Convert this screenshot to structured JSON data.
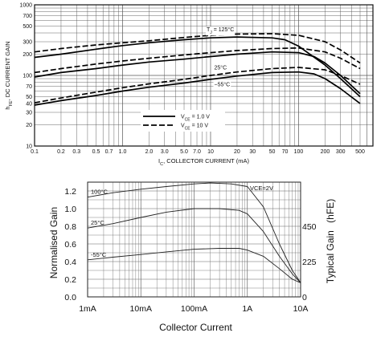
{
  "chart_data": [
    {
      "type": "line",
      "xlabel": "I_C, COLLECTOR CURRENT (mA)",
      "xlabel_parts": {
        "prefix": "I",
        "sub": "C",
        "suffix": ", COLLECTOR CURRENT (mA)"
      },
      "ylabel": "h_FE, DC CURRENT GAIN",
      "ylabel_parts": {
        "prefix": "h",
        "sub": "FE",
        "suffix": ", DC CURRENT GAIN"
      },
      "x_scale": "log",
      "y_scale": "log",
      "xlim": [
        0.1,
        700
      ],
      "ylim": [
        10,
        1000
      ],
      "grid": true,
      "x_ticks": [
        0.1,
        0.2,
        0.3,
        0.5,
        0.7,
        1.0,
        2.0,
        3.0,
        5.0,
        7.0,
        10,
        20,
        30,
        50,
        70,
        100,
        200,
        300,
        500
      ],
      "x_tick_labels": [
        "0.1",
        "0.2",
        "0.3",
        "0.5",
        "0.7",
        "1.0",
        "2.0",
        "3.0",
        "5.0",
        "7.0",
        "10",
        "20",
        "30",
        "50",
        "70",
        "100",
        "200",
        "300",
        "500"
      ],
      "y_ticks": [
        10,
        20,
        30,
        40,
        50,
        70,
        100,
        200,
        300,
        500,
        700,
        1000
      ],
      "y_tick_labels": [
        "10",
        "20",
        "30",
        "40",
        "50",
        "70",
        "100",
        "200",
        "300",
        "500",
        "700",
        "1000"
      ],
      "legend": {
        "placement": "bottom-center",
        "entries": [
          {
            "label_prefix": "V",
            "label_sub": "CE",
            "label_suffix": " = 1.0 V",
            "style": "solid"
          },
          {
            "label_prefix": "V",
            "label_sub": "CE",
            "label_suffix": " = 10 V",
            "style": "dashed"
          }
        ]
      },
      "annotations": [
        {
          "prefix": "T",
          "sub": "J",
          "suffix": " = 125°C",
          "x": 9,
          "y": 420
        },
        {
          "prefix": "",
          "sub": "",
          "suffix": "25°C",
          "x": 11,
          "y": 122
        },
        {
          "prefix": "",
          "sub": "",
          "suffix": "−55°C",
          "x": 11,
          "y": 70
        }
      ],
      "series": [
        {
          "condition": "T_J = 125°C, V_CE = 1.0 V",
          "style": "solid",
          "x": [
            0.1,
            0.2,
            0.5,
            1,
            2,
            5,
            10,
            20,
            50,
            70,
            100,
            200,
            300,
            500
          ],
          "y": [
            180,
            200,
            235,
            265,
            290,
            320,
            340,
            350,
            340,
            320,
            260,
            140,
            90,
            50
          ]
        },
        {
          "condition": "T_J = 125°C, V_CE = 10 V",
          "style": "dashed",
          "x": [
            0.1,
            0.2,
            0.5,
            1,
            2,
            5,
            10,
            20,
            50,
            100,
            200,
            300,
            500
          ],
          "y": [
            215,
            240,
            270,
            290,
            310,
            345,
            370,
            385,
            390,
            370,
            300,
            230,
            150
          ]
        },
        {
          "condition": "T_J = 25°C, V_CE = 1.0 V",
          "style": "solid",
          "x": [
            0.1,
            0.2,
            0.5,
            1,
            2,
            5,
            10,
            20,
            50,
            100,
            150,
            200,
            300,
            500
          ],
          "y": [
            95,
            110,
            125,
            140,
            155,
            170,
            185,
            200,
            215,
            210,
            185,
            150,
            100,
            55
          ]
        },
        {
          "condition": "T_J = 25°C, V_CE = 10 V",
          "style": "dashed",
          "x": [
            0.1,
            0.2,
            0.5,
            1,
            2,
            5,
            10,
            20,
            50,
            100,
            200,
            300,
            500
          ],
          "y": [
            110,
            125,
            145,
            160,
            175,
            195,
            210,
            225,
            240,
            245,
            215,
            175,
            125
          ]
        },
        {
          "condition": "T_J = −55°C, V_CE = 1.0 V",
          "style": "solid",
          "x": [
            0.1,
            0.2,
            0.5,
            1,
            2,
            5,
            10,
            20,
            50,
            100,
            150,
            200,
            300,
            500
          ],
          "y": [
            38,
            44,
            52,
            60,
            68,
            78,
            88,
            98,
            110,
            112,
            105,
            90,
            65,
            40
          ]
        },
        {
          "condition": "T_J = −55°C, V_CE = 10 V",
          "style": "dashed",
          "x": [
            0.1,
            0.2,
            0.5,
            1,
            2,
            5,
            10,
            20,
            50,
            100,
            200,
            300,
            500
          ],
          "y": [
            41,
            48,
            58,
            67,
            76,
            88,
            100,
            112,
            125,
            130,
            120,
            100,
            75
          ]
        }
      ]
    },
    {
      "type": "line",
      "xlabel": "Collector Current",
      "ylabel": "Normalised Gain",
      "y2label_main": "Typical Gain",
      "y2label_paren": "(hFE)",
      "x_scale": "log",
      "xlim_A": [
        0.001,
        10
      ],
      "ylim": [
        0.0,
        1.3
      ],
      "grid": true,
      "x_ticks_A": [
        0.001,
        0.01,
        0.1,
        1,
        10
      ],
      "x_tick_labels": [
        "1mA",
        "10mA",
        "100mA",
        "1A",
        "10A"
      ],
      "y_ticks": [
        0.0,
        0.2,
        0.4,
        0.6,
        0.8,
        1.0,
        1.2
      ],
      "y_tick_labels": [
        "0.0",
        "0.2",
        "0.4",
        "0.6",
        "0.8",
        "1.0",
        "1.2"
      ],
      "y2_ticks_norm": [
        0.0,
        0.4,
        0.8
      ],
      "y2_tick_labels": [
        "0",
        "225",
        "450"
      ],
      "condition": "VCE=2V",
      "series": [
        {
          "label": "100°C",
          "x_A": [
            0.001,
            0.003,
            0.01,
            0.03,
            0.1,
            0.2,
            0.5,
            1,
            2,
            4,
            7,
            10
          ],
          "y": [
            1.13,
            1.18,
            1.22,
            1.25,
            1.28,
            1.29,
            1.28,
            1.25,
            1.02,
            0.6,
            0.3,
            0.16
          ]
        },
        {
          "label": "25°C",
          "x_A": [
            0.001,
            0.003,
            0.01,
            0.03,
            0.1,
            0.3,
            0.7,
            1,
            2,
            4,
            7,
            10
          ],
          "y": [
            0.78,
            0.83,
            0.9,
            0.96,
            1.0,
            1.0,
            0.98,
            0.94,
            0.74,
            0.46,
            0.26,
            0.16
          ]
        },
        {
          "label": "-55°C",
          "x_A": [
            0.001,
            0.003,
            0.01,
            0.03,
            0.1,
            0.3,
            0.7,
            1,
            2,
            4,
            7,
            10
          ],
          "y": [
            0.42,
            0.45,
            0.48,
            0.51,
            0.54,
            0.55,
            0.55,
            0.53,
            0.46,
            0.32,
            0.2,
            0.16
          ]
        }
      ]
    }
  ]
}
